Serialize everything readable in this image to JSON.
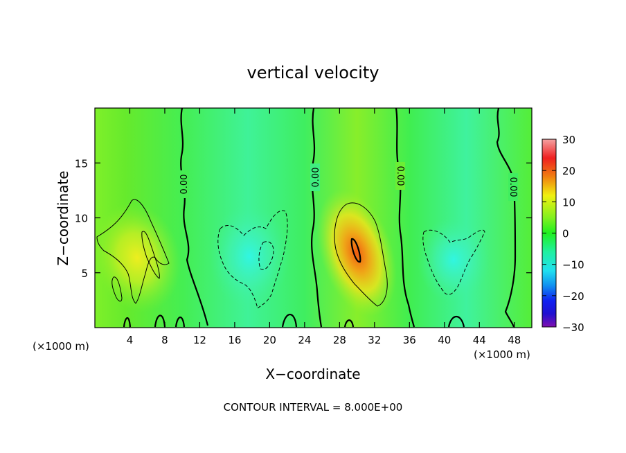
{
  "chart_data": {
    "type": "heatmap",
    "title": "vertical velocity",
    "xlabel": "X−coordinate",
    "ylabel": "Z−coordinate",
    "x_unit_left": "(×1000 m)",
    "x_unit_right": "(×1000 m)",
    "footer": "CONTOUR INTERVAL = 8.000E+00",
    "xlim": [
      0,
      50
    ],
    "ylim": [
      0,
      20
    ],
    "x_ticks": [
      4,
      8,
      12,
      16,
      20,
      24,
      28,
      32,
      36,
      40,
      44,
      48
    ],
    "y_ticks": [
      5,
      10,
      15
    ],
    "zero_contour_label": "0.00",
    "colorbar": {
      "ticks": [
        30,
        20,
        10,
        0,
        -10,
        -20,
        -30
      ],
      "tick_labels": [
        "30",
        "20",
        "10",
        "0",
        "−10",
        "−20",
        "−30"
      ],
      "range": [
        -30,
        30
      ]
    },
    "contour_interval": 8,
    "features": [
      {
        "x": 5,
        "z": 8,
        "w": 9
      },
      {
        "x": 30,
        "z": 7,
        "w": 15
      },
      {
        "x": 18,
        "z": 7,
        "w": -9
      },
      {
        "x": 41,
        "z": 6,
        "w": -9
      }
    ]
  }
}
